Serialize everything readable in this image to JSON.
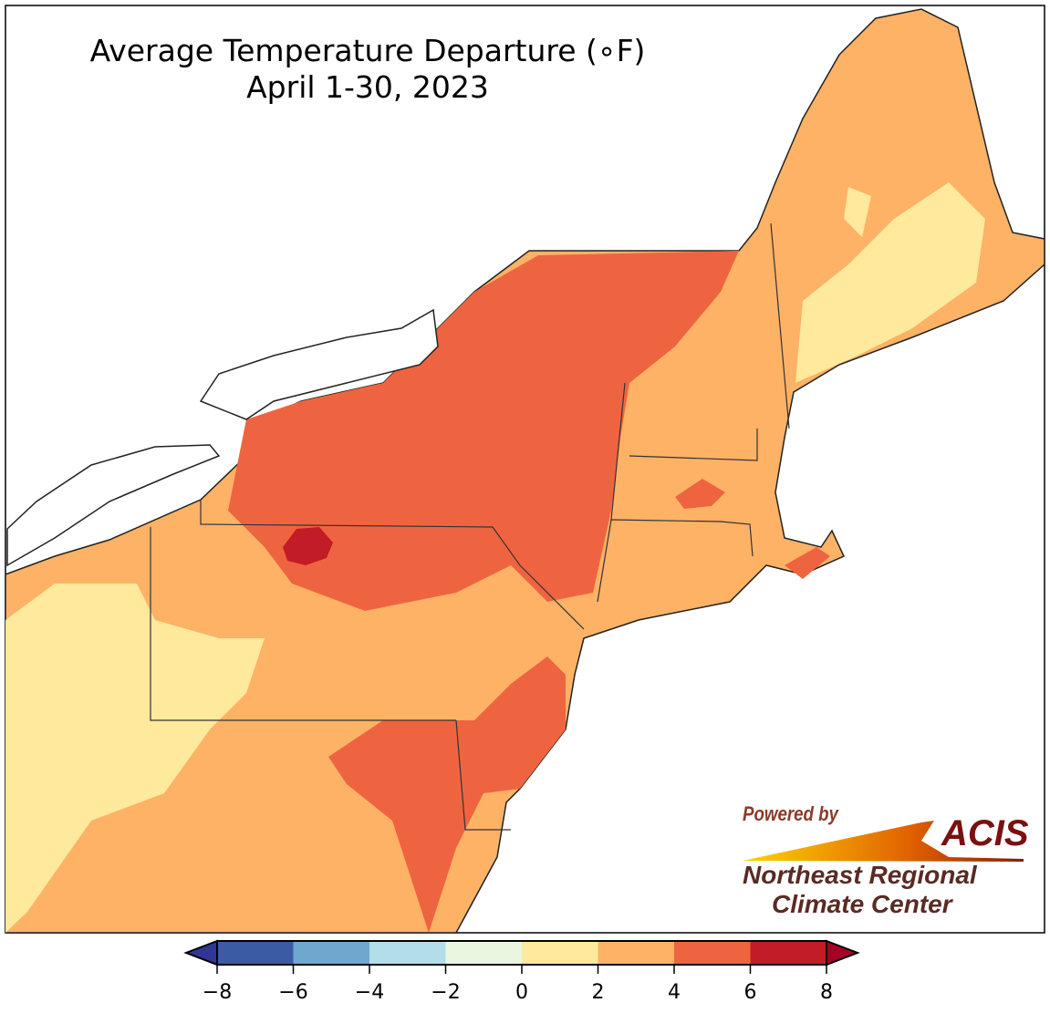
{
  "title": {
    "line1": "Average Temperature Departure (∘F)",
    "line2": "April 1-30, 2023"
  },
  "colorbar": {
    "ticks": [
      "−8",
      "−6",
      "−4",
      "−2",
      "0",
      "2",
      "4",
      "6",
      "8"
    ],
    "bins": [
      {
        "range": [
          -8,
          -6
        ],
        "color": "#3b5ba5"
      },
      {
        "range": [
          -6,
          -4
        ],
        "color": "#6fa8cf"
      },
      {
        "range": [
          -4,
          -2
        ],
        "color": "#b3dde9"
      },
      {
        "range": [
          -2,
          0
        ],
        "color": "#eaf6df"
      },
      {
        "range": [
          0,
          2
        ],
        "color": "#fee99d"
      },
      {
        "range": [
          2,
          4
        ],
        "color": "#fdb266"
      },
      {
        "range": [
          4,
          6
        ],
        "color": "#ef6440"
      },
      {
        "range": [
          6,
          8
        ],
        "color": "#c21c27"
      }
    ],
    "under_color": "#313695",
    "over_color": "#a50026"
  },
  "logo": {
    "powered_by": "Powered by",
    "acis": "ACIS",
    "org_line1": "Northeast Regional",
    "org_line2": "Climate Center"
  }
}
